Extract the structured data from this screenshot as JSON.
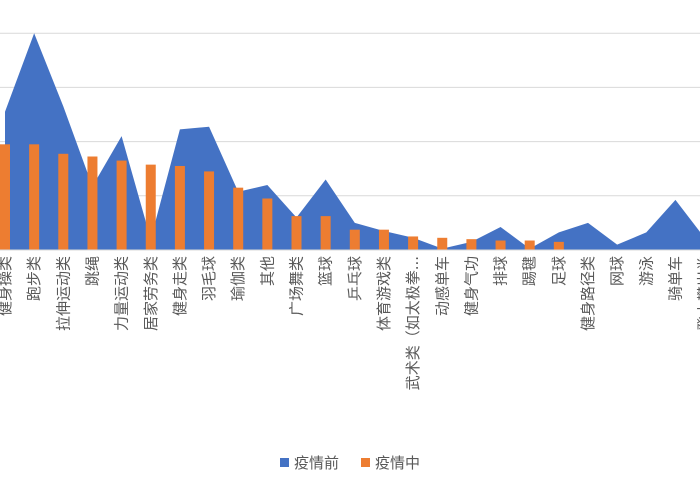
{
  "chart_data": {
    "type": "bar",
    "categories": [
      "健身操类",
      "跑步类",
      "拉伸运动类",
      "跳绳",
      "力量运动类",
      "居家劳务类",
      "健身走类",
      "羽毛球",
      "瑜伽类",
      "其他",
      "广场舞类",
      "篮球",
      "乒乓球",
      "体育游戏类",
      "武术类（如太极拳...",
      "动感单车",
      "健身气功",
      "排球",
      "踢毽",
      "足球",
      "健身路径类",
      "网球",
      "游泳",
      "骑单车",
      "登山攀岩类"
    ],
    "series": [
      {
        "name": "疫情前",
        "render": "area",
        "color": "#4472C4",
        "values": [
          10.2,
          16.0,
          10.6,
          4.7,
          8.4,
          0.8,
          8.9,
          9.1,
          4.3,
          4.8,
          2.4,
          5.2,
          2.0,
          1.4,
          0.9,
          0.1,
          0.6,
          1.7,
          0.1,
          1.3,
          2.0,
          0.4,
          1.3,
          3.7,
          0.9
        ]
      },
      {
        "name": "疫情中",
        "render": "bar",
        "color": "#ED7D31",
        "values": [
          7.8,
          7.8,
          7.1,
          6.9,
          6.6,
          6.3,
          6.2,
          5.8,
          4.6,
          3.8,
          2.5,
          2.5,
          1.5,
          1.5,
          1.0,
          0.9,
          0.8,
          0.7,
          0.7,
          0.6,
          0,
          0,
          0,
          0,
          0
        ]
      }
    ],
    "ylim": [
      0,
      20
    ],
    "grid": true,
    "legend_position": "bottom"
  },
  "legend": {
    "items": [
      "疫情前",
      "疫情中"
    ]
  }
}
